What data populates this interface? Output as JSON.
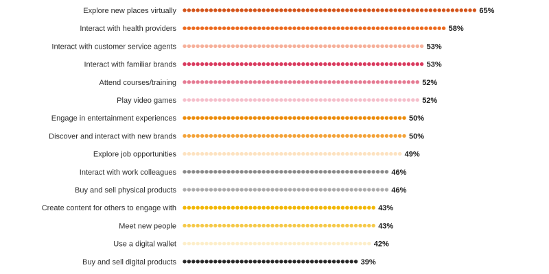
{
  "chart_data": {
    "type": "bar",
    "style": "dotted-horizontal-bars",
    "categories": [
      "Explore new places virtually",
      "Interact with health providers",
      "Interact with customer service agents",
      "Interact with familiar brands",
      "Attend courses/training",
      "Play video games",
      "Engage in entertainment experiences",
      "Discover and interact with new brands",
      "Explore job opportunities",
      "Interact with work colleagues",
      "Buy and sell physical products",
      "Create content for others to engage with",
      "Meet new people",
      "Use a digital wallet",
      "Buy and sell digital products"
    ],
    "values": [
      65,
      58,
      53,
      53,
      52,
      52,
      50,
      50,
      49,
      46,
      46,
      43,
      43,
      42,
      39
    ],
    "value_labels": [
      "65%",
      "58%",
      "53%",
      "53%",
      "52%",
      "52%",
      "50%",
      "50%",
      "49%",
      "46%",
      "46%",
      "43%",
      "43%",
      "42%",
      "39%"
    ],
    "colors": [
      "#d4561d",
      "#ec6a1e",
      "#f6b09a",
      "#d93a5e",
      "#e57b93",
      "#f5bfcb",
      "#ec8c0b",
      "#f3a33a",
      "#fde2c0",
      "#8a8a8a",
      "#adadad",
      "#f2b705",
      "#f5c94a",
      "#fdeec9",
      "#2b2b2b"
    ],
    "title": "",
    "xlabel": "",
    "ylabel": "",
    "xlim": [
      0,
      65
    ],
    "grid": false,
    "legend": "none"
  }
}
